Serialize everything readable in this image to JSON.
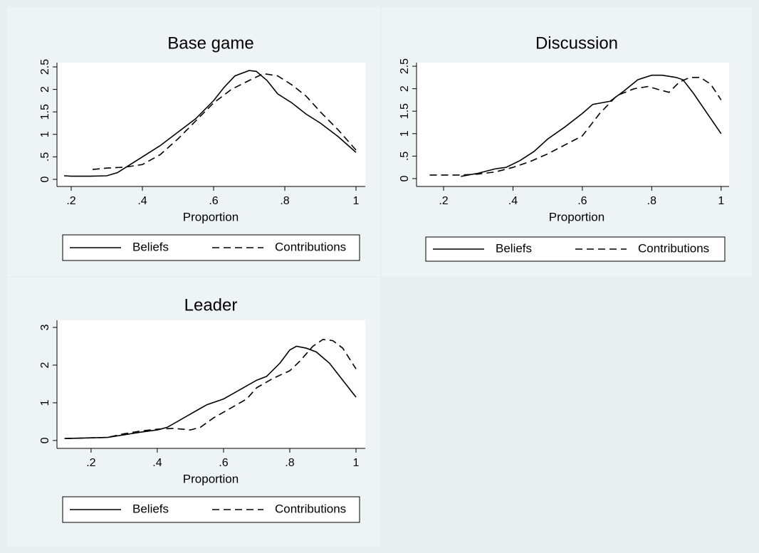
{
  "chart_data": [
    {
      "type": "line",
      "title": "Base game",
      "xlabel": "Proportion",
      "xlim": [
        0.16,
        1.026
      ],
      "ylim": [
        -0.158,
        2.595
      ],
      "xticks": [
        {
          "value": 0.2,
          "label": ".2"
        },
        {
          "value": 0.4,
          "label": ".4"
        },
        {
          "value": 0.6,
          "label": ".6"
        },
        {
          "value": 0.8,
          "label": ".8"
        },
        1
      ],
      "yticks": [
        0,
        {
          "value": 0.5,
          "label": ".5"
        },
        1,
        1.5,
        2,
        2.5
      ],
      "legend": "bottom",
      "series": [
        {
          "name": "Beliefs",
          "color": "#000000",
          "style": "solid",
          "x": [
            0.18,
            0.2,
            0.25,
            0.3,
            0.33,
            0.36,
            0.4,
            0.45,
            0.5,
            0.55,
            0.6,
            0.63,
            0.66,
            0.7,
            0.72,
            0.75,
            0.78,
            0.82,
            0.86,
            0.9,
            0.95,
            1
          ],
          "values": [
            0.08,
            0.07,
            0.07,
            0.08,
            0.15,
            0.3,
            0.5,
            0.75,
            1.05,
            1.35,
            1.75,
            2.05,
            2.3,
            2.42,
            2.4,
            2.2,
            1.9,
            1.7,
            1.45,
            1.25,
            0.95,
            0.6
          ]
        },
        {
          "name": "Contributions",
          "color": "#000000",
          "style": "dashed",
          "x": [
            0.26,
            0.3,
            0.35,
            0.4,
            0.45,
            0.5,
            0.55,
            0.6,
            0.65,
            0.7,
            0.74,
            0.78,
            0.82,
            0.86,
            0.9,
            0.95,
            1
          ],
          "values": [
            0.22,
            0.25,
            0.27,
            0.33,
            0.55,
            0.9,
            1.3,
            1.7,
            2.0,
            2.2,
            2.35,
            2.3,
            2.1,
            1.85,
            1.5,
            1.1,
            0.65
          ]
        }
      ]
    },
    {
      "type": "line",
      "title": "Discussion",
      "xlabel": "Proportion",
      "xlim": [
        0.122,
        1.023
      ],
      "ylim": [
        -0.175,
        2.58
      ],
      "xticks": [
        {
          "value": 0.2,
          "label": ".2"
        },
        {
          "value": 0.4,
          "label": ".4"
        },
        {
          "value": 0.6,
          "label": ".6"
        },
        {
          "value": 0.8,
          "label": ".8"
        },
        1
      ],
      "yticks": [
        0,
        {
          "value": 0.5,
          "label": ".5"
        },
        1,
        1.5,
        2,
        2.5
      ],
      "legend": "bottom",
      "series": [
        {
          "name": "Beliefs",
          "color": "#000000",
          "style": "solid",
          "x": [
            0.25,
            0.3,
            0.35,
            0.38,
            0.42,
            0.46,
            0.5,
            0.55,
            0.6,
            0.63,
            0.68,
            0.72,
            0.76,
            0.8,
            0.83,
            0.87,
            0.89,
            0.92,
            0.96,
            1
          ],
          "values": [
            0.05,
            0.12,
            0.22,
            0.25,
            0.4,
            0.6,
            0.88,
            1.15,
            1.45,
            1.65,
            1.72,
            1.95,
            2.2,
            2.3,
            2.3,
            2.25,
            2.2,
            1.9,
            1.45,
            1.0
          ]
        },
        {
          "name": "Contributions",
          "color": "#000000",
          "style": "dashed",
          "x": [
            0.16,
            0.2,
            0.25,
            0.3,
            0.35,
            0.4,
            0.45,
            0.5,
            0.55,
            0.6,
            0.65,
            0.7,
            0.75,
            0.79,
            0.82,
            0.85,
            0.88,
            0.91,
            0.94,
            0.97,
            1
          ],
          "values": [
            0.08,
            0.08,
            0.08,
            0.1,
            0.15,
            0.25,
            0.38,
            0.55,
            0.75,
            0.95,
            1.45,
            1.85,
            2.0,
            2.05,
            1.98,
            1.92,
            2.15,
            2.25,
            2.25,
            2.1,
            1.75
          ]
        }
      ]
    },
    {
      "type": "line",
      "title": "Leader",
      "xlabel": "Proportion",
      "xlim": [
        0.097,
        1.028
      ],
      "ylim": [
        -0.21,
        3.19
      ],
      "xticks": [
        {
          "value": 0.2,
          "label": ".2"
        },
        {
          "value": 0.4,
          "label": ".4"
        },
        {
          "value": 0.6,
          "label": ".6"
        },
        {
          "value": 0.8,
          "label": ".8"
        },
        1
      ],
      "yticks": [
        0,
        1,
        2,
        3
      ],
      "legend": "bottom",
      "series": [
        {
          "name": "Beliefs",
          "color": "#000000",
          "style": "solid",
          "x": [
            0.12,
            0.2,
            0.25,
            0.3,
            0.35,
            0.4,
            0.43,
            0.47,
            0.52,
            0.55,
            0.6,
            0.65,
            0.7,
            0.73,
            0.77,
            0.8,
            0.82,
            0.85,
            0.88,
            0.92,
            0.96,
            1
          ],
          "values": [
            0.05,
            0.07,
            0.08,
            0.15,
            0.22,
            0.28,
            0.35,
            0.55,
            0.8,
            0.95,
            1.1,
            1.35,
            1.6,
            1.7,
            2.05,
            2.4,
            2.5,
            2.45,
            2.35,
            2.05,
            1.6,
            1.15
          ]
        },
        {
          "name": "Contributions",
          "color": "#000000",
          "style": "dashed",
          "x": [
            0.12,
            0.2,
            0.25,
            0.3,
            0.35,
            0.4,
            0.45,
            0.5,
            0.53,
            0.57,
            0.62,
            0.67,
            0.7,
            0.75,
            0.8,
            0.83,
            0.87,
            0.9,
            0.93,
            0.96,
            1
          ],
          "values": [
            0.05,
            0.07,
            0.08,
            0.18,
            0.25,
            0.3,
            0.32,
            0.28,
            0.35,
            0.6,
            0.85,
            1.1,
            1.4,
            1.65,
            1.85,
            2.1,
            2.5,
            2.68,
            2.65,
            2.45,
            1.9
          ]
        }
      ]
    }
  ]
}
